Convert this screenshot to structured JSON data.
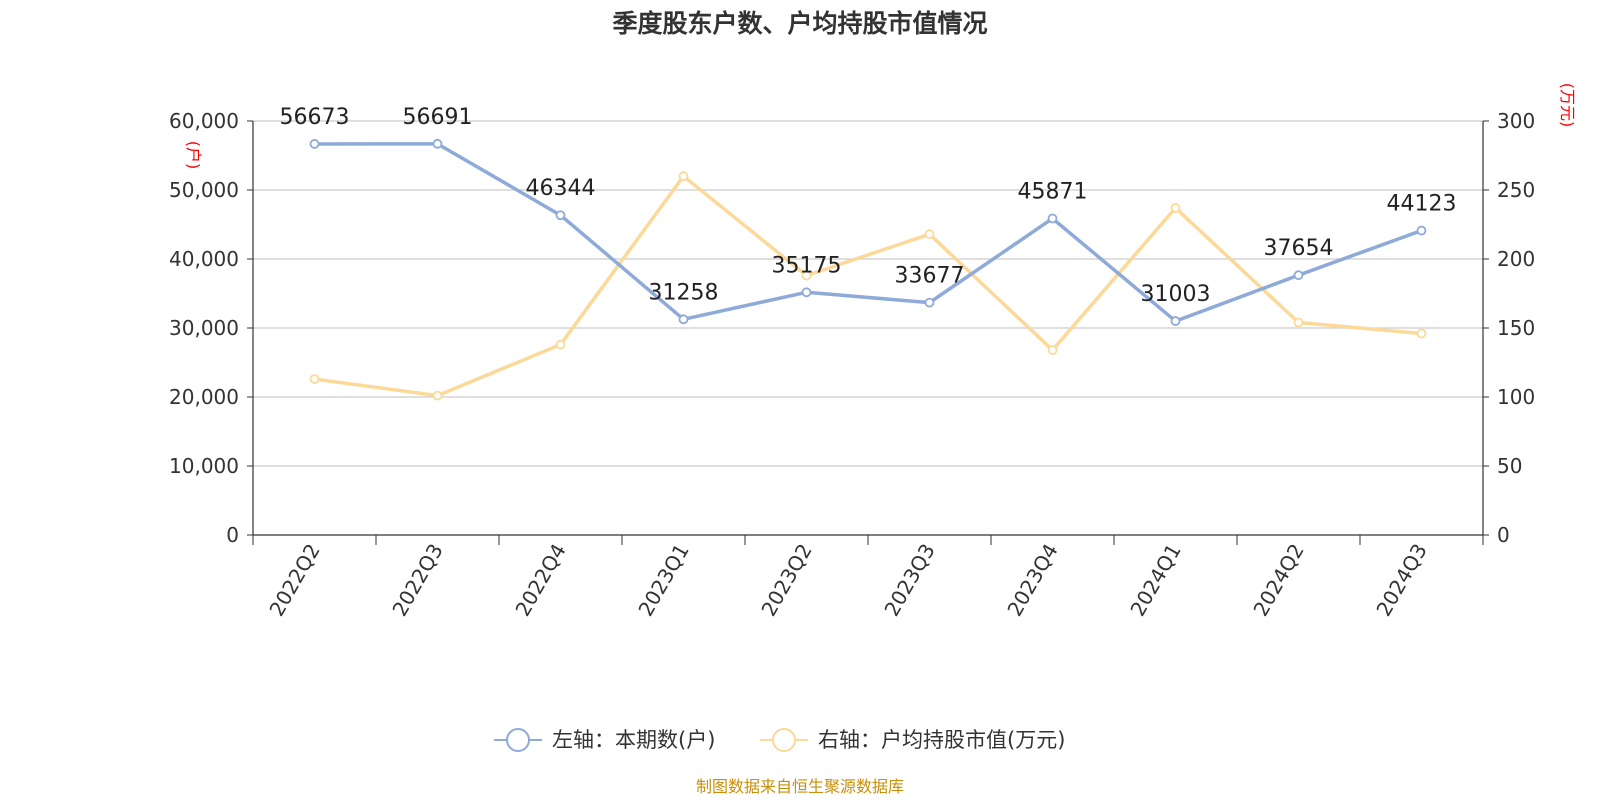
{
  "chart_data": {
    "type": "line",
    "title": "季度股东户数、户均持股市值情况",
    "categories": [
      "2022Q2",
      "2022Q3",
      "2022Q4",
      "2023Q1",
      "2023Q2",
      "2023Q3",
      "2023Q4",
      "2024Q1",
      "2024Q2",
      "2024Q3"
    ],
    "y_left": {
      "unit": "(户)",
      "range": [
        0,
        60000
      ],
      "ticks": [
        "0",
        "10,000",
        "20,000",
        "30,000",
        "40,000",
        "50,000",
        "60,000"
      ]
    },
    "y_right": {
      "unit": "(万元)",
      "range": [
        0,
        300
      ],
      "ticks": [
        "0",
        "50",
        "100",
        "150",
        "200",
        "250",
        "300"
      ]
    },
    "series": [
      {
        "name": "左轴：本期数(户)",
        "axis": "left",
        "color": "#8eaad8",
        "values": [
          56673,
          56691,
          46344,
          31258,
          35175,
          33677,
          45871,
          31003,
          37654,
          44123
        ],
        "labels": [
          "56673",
          "56691",
          "46344",
          "31258",
          "35175",
          "33677",
          "45871",
          "31003",
          "37654",
          "44123"
        ]
      },
      {
        "name": "右轴：户均持股市值(万元)",
        "axis": "right",
        "color": "#fcd998",
        "values": [
          113,
          101,
          138,
          260,
          188,
          218,
          134,
          237,
          154,
          146
        ]
      }
    ],
    "grid": true,
    "legend_position": "bottom-center"
  },
  "source_text": "制图数据来自恒生聚源数据库"
}
